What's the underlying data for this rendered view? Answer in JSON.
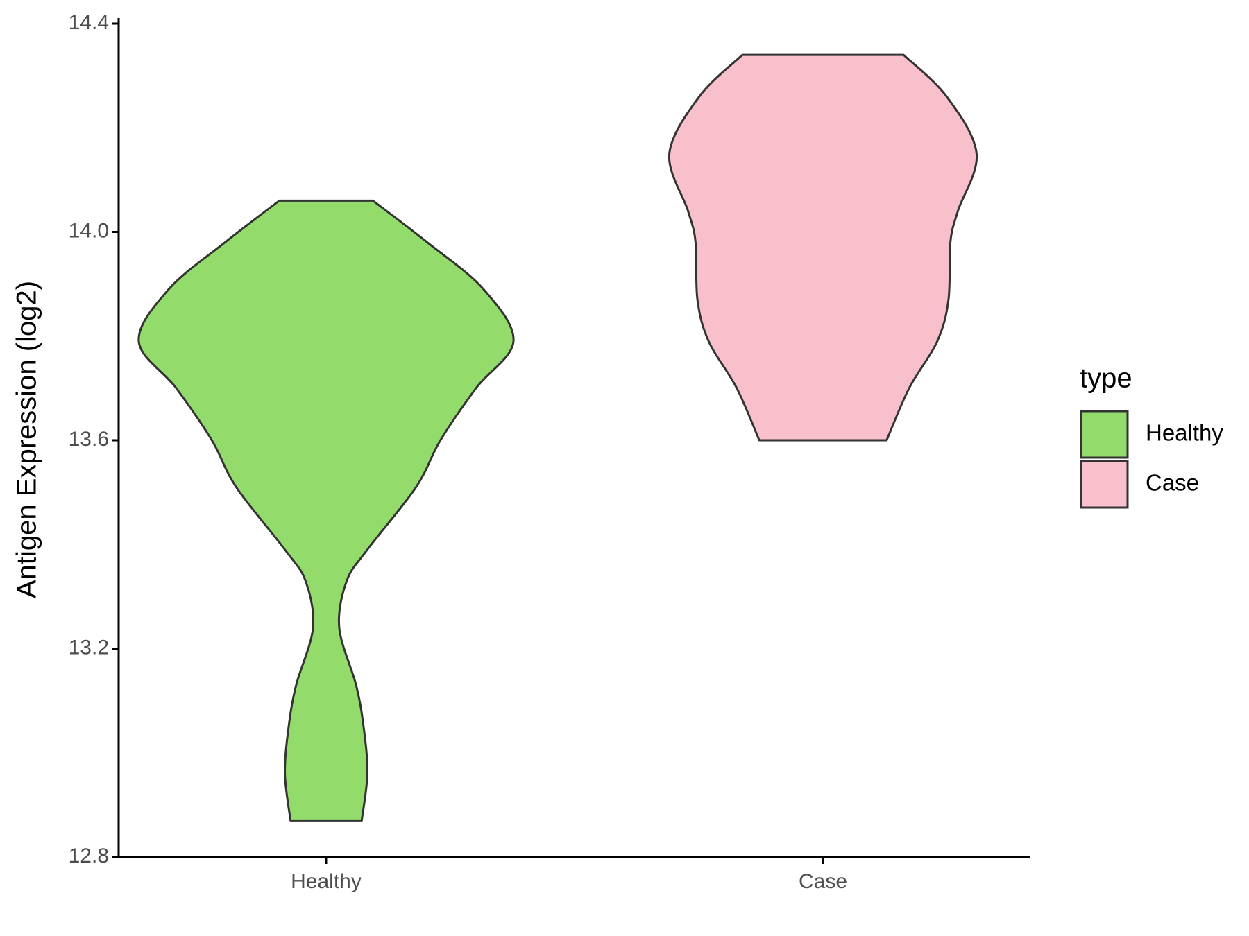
{
  "chart_data": {
    "type": "violin",
    "y_label": "Antigen Expression (log2)",
    "categories": [
      "Healthy",
      "Case"
    ],
    "legend_title": "type",
    "legend": "right",
    "series": [
      {
        "name": "Healthy",
        "color": "#93dc6b",
        "y": [
          14.06,
          13.98,
          13.89,
          13.79,
          13.7,
          13.6,
          13.51,
          13.39,
          13.33,
          13.24,
          13.13,
          13.05,
          12.96,
          12.87
        ],
        "density": [
          0.25,
          0.54,
          0.84,
          1.0,
          0.8,
          0.61,
          0.48,
          0.22,
          0.11,
          0.07,
          0.16,
          0.2,
          0.22,
          0.19
        ]
      },
      {
        "name": "Case",
        "color": "#f7c0cb",
        "y": [
          14.34,
          14.26,
          14.15,
          14.04,
          13.98,
          13.87,
          13.79,
          13.7,
          13.6
        ],
        "density": [
          0.43,
          0.66,
          0.82,
          0.72,
          0.68,
          0.67,
          0.61,
          0.46,
          0.34
        ]
      }
    ],
    "ylim": [
      12.8,
      14.4
    ],
    "yticks": [
      12.8,
      13.2,
      13.6,
      {
        "value": 14,
        "label": "14.0"
      },
      14.4
    ]
  }
}
